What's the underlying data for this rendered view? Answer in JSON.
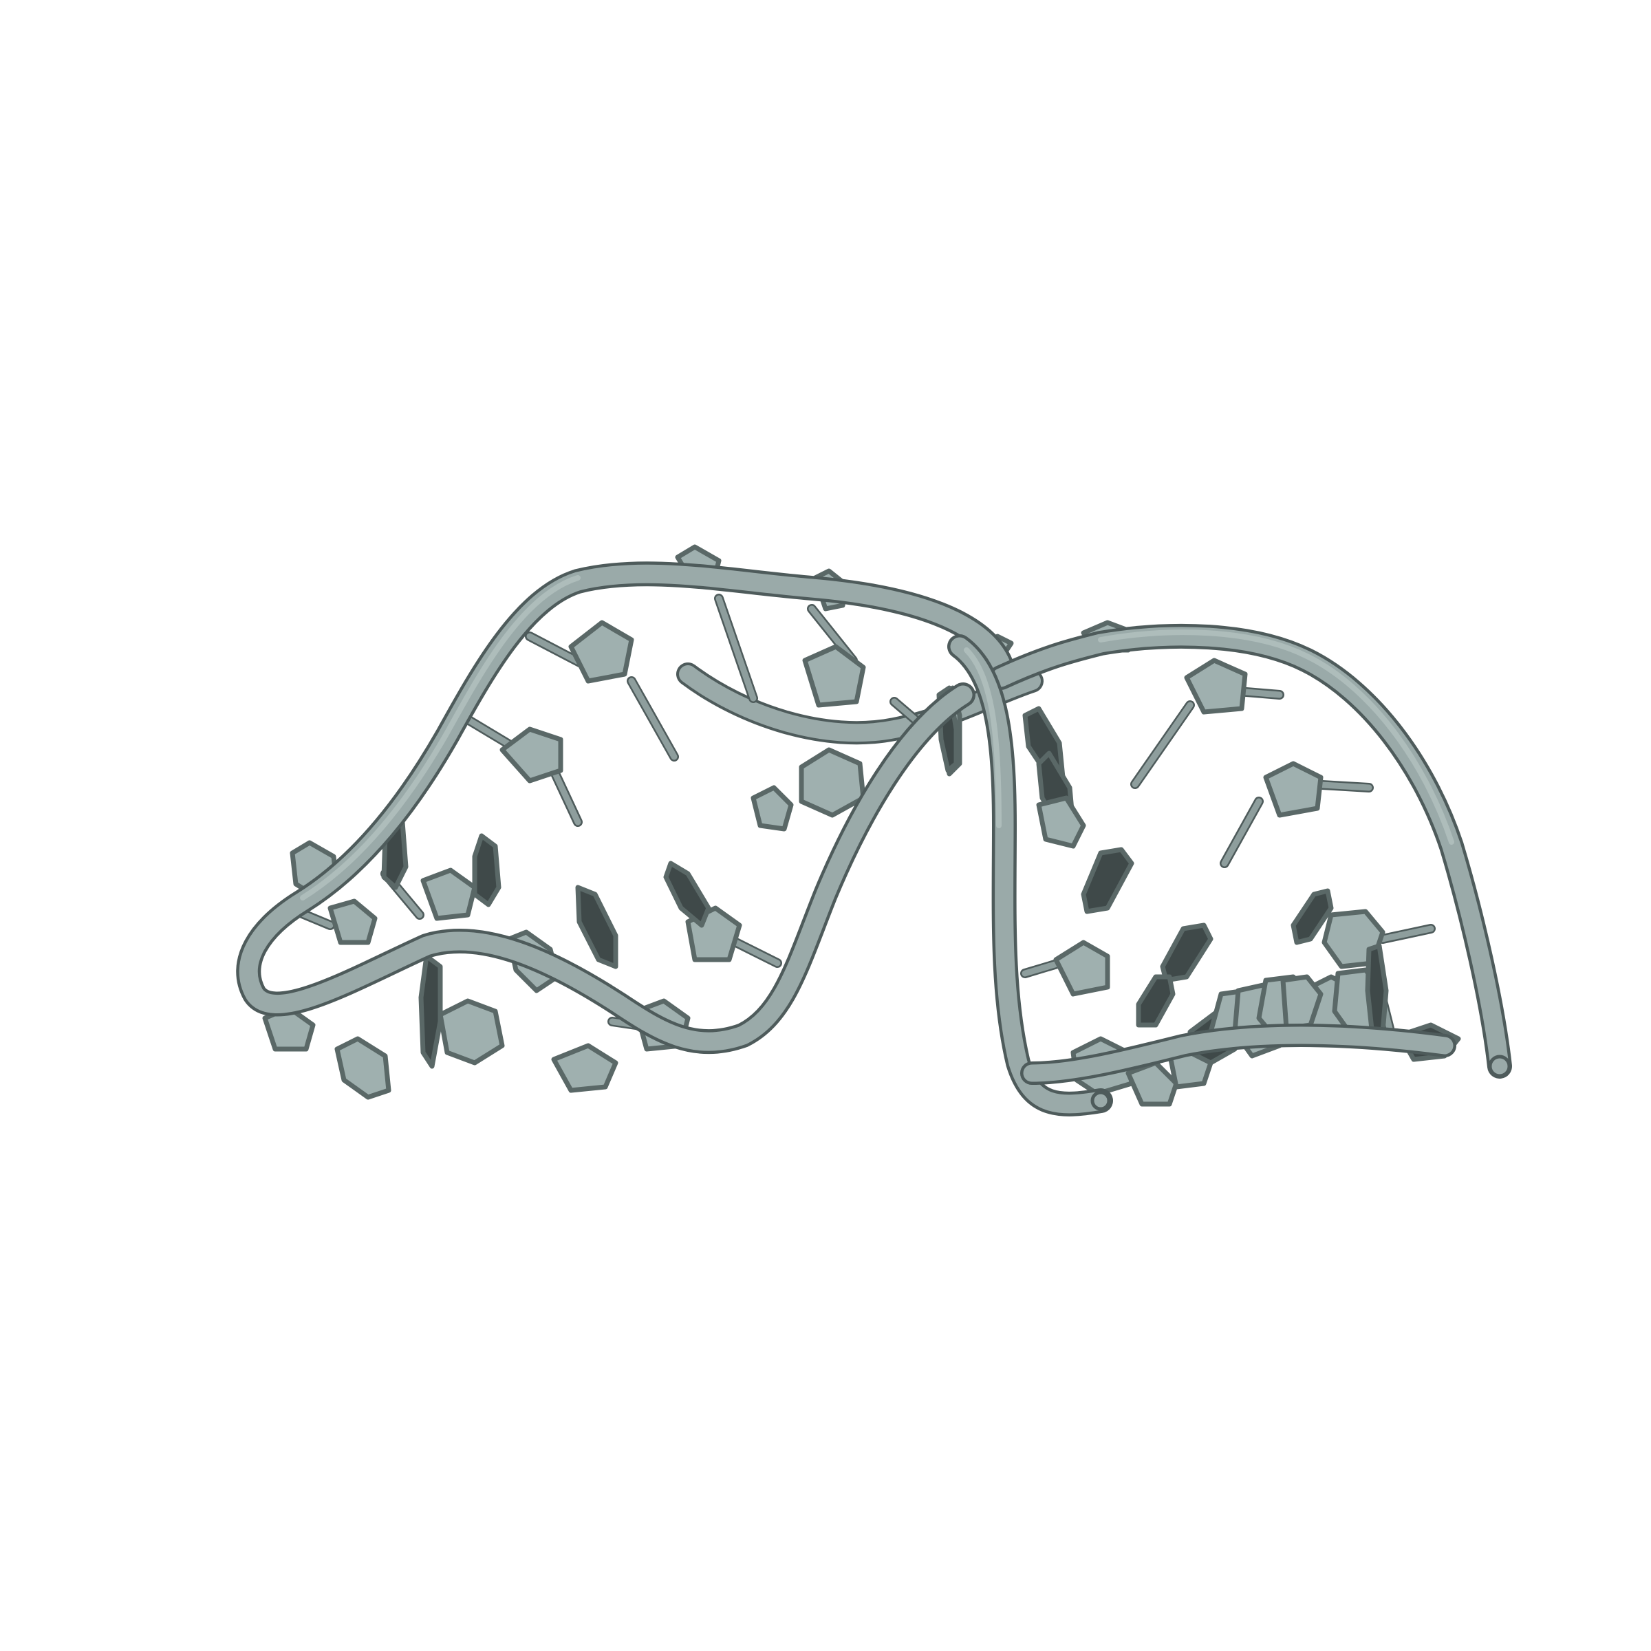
{
  "image": {
    "subject": "molecule-cartoon-rendering",
    "colors": {
      "background": "#ffffff",
      "backbone": "#9aaaa9",
      "backbone_edge": "#4e5b5b",
      "ring_face": "#9fb0af",
      "ring_dark_face": "#3f4949"
    }
  }
}
